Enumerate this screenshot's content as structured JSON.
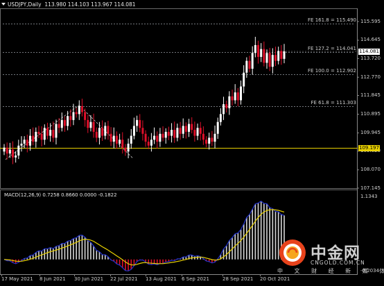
{
  "window": {
    "title": "USDJPY,Daily",
    "ohlc": "113.980 114.103 113.967 114.081"
  },
  "price_axis": {
    "ticks": [
      "115.595",
      "114.645",
      "113.720",
      "112.770",
      "111.845",
      "110.895",
      "109.945",
      "109.020",
      "108.070",
      "107.145"
    ],
    "tick_values": [
      115.595,
      114.645,
      113.72,
      112.77,
      111.845,
      110.895,
      109.945,
      109.02,
      108.07,
      107.145
    ],
    "current_price": "114.081",
    "horizontal_line_price": "109.197"
  },
  "fib_levels": [
    {
      "label": "FE 161.8 = 115.490",
      "price": 115.49
    },
    {
      "label": "FE 127.2 = 114.041",
      "price": 114.041
    },
    {
      "label": "FE 100.0 = 112.902",
      "price": 112.902
    },
    {
      "label": "FE 61.8 = 111.303",
      "price": 111.303
    }
  ],
  "macd": {
    "label": "MACD(12,26,9) 0.7258 0.8660 0.0000 -0.1822",
    "ticks": [
      "1.1343",
      "-0.2034"
    ],
    "tick_values": [
      1.1343,
      -0.2034
    ]
  },
  "x_axis": {
    "labels": [
      "17 May 2021",
      "8 Jun 2021",
      "30 Jun 2021",
      "22 Jul 2021",
      "13 Aug 2021",
      "6 Sep 2021",
      "28 Sep 2021",
      "20 Oct 2021"
    ]
  },
  "watermark": {
    "name": "中金网",
    "site": "CNGOLD.COM.CN",
    "tagline": "中 文 财 经 新 媒 体"
  },
  "colors": {
    "background": "#000000",
    "bull": "#ffffff",
    "bear": "#e0102a",
    "macd_main": "#2233cc",
    "macd_signal": "#e8d000",
    "level_line": "#e8d000",
    "fib_line": "#9aa0a8"
  },
  "chart_data": {
    "type": "candlestick",
    "title": "USDJPY,Daily",
    "ylim": [
      106.9,
      115.9
    ],
    "note_levels": [
      115.49,
      114.041,
      112.902,
      111.303,
      109.197
    ],
    "candles_close": [
      109.2,
      108.9,
      109.1,
      108.7,
      108.8,
      109.3,
      109.4,
      109.6,
      109.3,
      109.8,
      109.5,
      110.0,
      109.9,
      109.6,
      110.2,
      109.8,
      110.1,
      109.7,
      110.4,
      110.2,
      110.6,
      110.3,
      110.8,
      110.6,
      111.0,
      110.9,
      111.3,
      111.0,
      110.6,
      110.2,
      110.5,
      110.0,
      109.7,
      110.2,
      109.8,
      110.3,
      109.9,
      109.5,
      109.8,
      109.4,
      109.6,
      109.2,
      109.0,
      109.4,
      109.8,
      110.3,
      110.6,
      110.2,
      109.9,
      109.5,
      109.3,
      109.6,
      109.8,
      109.5,
      109.9,
      109.7,
      110.0,
      109.8,
      110.1,
      109.7,
      110.2,
      109.9,
      110.3,
      110.0,
      110.4,
      110.1,
      109.8,
      110.2,
      109.9,
      109.6,
      109.4,
      109.7,
      109.5,
      109.9,
      110.5,
      110.9,
      111.4,
      111.2,
      111.8,
      111.6,
      112.0,
      111.6,
      112.3,
      113.0,
      113.6,
      113.2,
      114.0,
      114.4,
      113.8,
      114.2,
      113.5,
      114.0,
      113.3,
      113.9,
      113.6,
      114.1,
      113.7,
      114.08
    ]
  }
}
